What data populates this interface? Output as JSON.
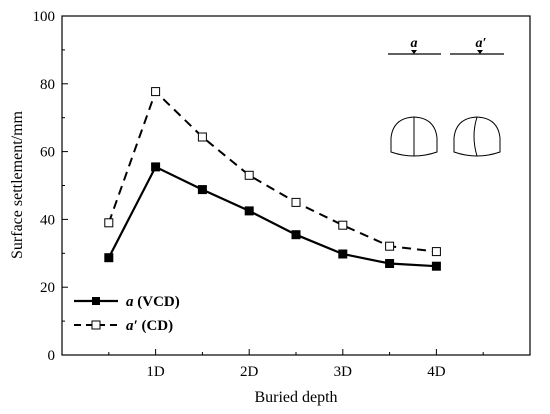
{
  "chart_data": {
    "type": "line",
    "xlabel": "Buried depth",
    "ylabel": "Surface settlement/mm",
    "xlim": [
      0,
      5
    ],
    "ylim": [
      0,
      100
    ],
    "xticks": [
      {
        "value": 1,
        "label": "1D"
      },
      {
        "value": 2,
        "label": "2D"
      },
      {
        "value": 3,
        "label": "3D"
      },
      {
        "value": 4,
        "label": "4D"
      }
    ],
    "yticks": [
      0,
      20,
      40,
      60,
      80,
      100
    ],
    "grid": false,
    "legend_position": "bottom-left",
    "series": [
      {
        "name_italic": "a",
        "name_rest": " (VCD)",
        "style": "solid",
        "marker": "filled-square",
        "color": "#000000",
        "x": [
          0.5,
          1,
          1.5,
          2,
          2.5,
          3,
          3.5,
          4
        ],
        "y": [
          28.7,
          55.5,
          48.8,
          42.5,
          35.5,
          29.8,
          27.0,
          26.2
        ]
      },
      {
        "name_italic": "a′",
        "name_rest": " (CD)",
        "style": "dashed",
        "marker": "open-square",
        "color": "#000000",
        "x": [
          0.5,
          1,
          1.5,
          2,
          2.5,
          3,
          3.5,
          4
        ],
        "y": [
          39.0,
          77.7,
          64.3,
          53.0,
          45.0,
          38.3,
          32.1,
          30.5
        ]
      }
    ],
    "annotations": [
      {
        "label": "a"
      },
      {
        "label": "a′"
      }
    ]
  }
}
